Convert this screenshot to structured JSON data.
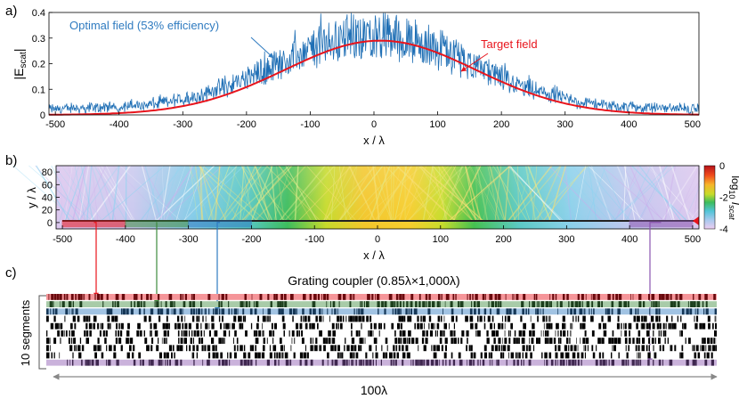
{
  "chart_data": [
    {
      "type": "line",
      "panel_label": "a)",
      "ylabel_main": "|E",
      "ylabel_sub": "scat",
      "ylabel_close": "|",
      "xlabel": "x / λ",
      "xlim": [
        -510,
        510
      ],
      "ylim": [
        0,
        0.4
      ],
      "xticks": [
        "-500",
        "-400",
        "-300",
        "-200",
        "-100",
        "0",
        "100",
        "200",
        "300",
        "400",
        "500"
      ],
      "yticks": [
        "0",
        "0.1",
        "0.2",
        "0.3",
        "0.4"
      ],
      "series": [
        {
          "name": "Optimal field (53% efficiency)",
          "color": "#1f6fb5",
          "kind": "noisy",
          "center": 0,
          "sigma": 150,
          "peak": 0.29,
          "noise_amp": 0.08,
          "floor": 0.025
        },
        {
          "name": "Target field",
          "color": "#e8141c",
          "kind": "gaussian",
          "center": 10,
          "sigma": 150,
          "peak": 0.29
        }
      ],
      "annotations": [
        {
          "text": "Optimal field (53% efficiency)",
          "color": "#2f7bc0"
        },
        {
          "text": "Target field",
          "color": "#e8141c"
        }
      ]
    },
    {
      "type": "heatmap",
      "panel_label": "b)",
      "ylabel": "y / λ",
      "xlabel": "x / λ",
      "xlim": [
        -510,
        510
      ],
      "ylim": [
        -10,
        90
      ],
      "xticks": [
        "-500",
        "-400",
        "-300",
        "-200",
        "-100",
        "0",
        "100",
        "200",
        "300",
        "400",
        "500"
      ],
      "yticks": [
        "0",
        "20",
        "40",
        "60",
        "80"
      ],
      "colorbar": {
        "label_pre": "log",
        "label_sub": "10",
        "label_post": " I",
        "label_sub2": "scat",
        "ticks": [
          "0",
          "-2",
          "-4"
        ],
        "range": [
          -4,
          0
        ]
      },
      "highlight_segments": [
        {
          "name": "seg-red",
          "x_range": [
            -500,
            -400
          ],
          "color": "#e8141c"
        },
        {
          "name": "seg-green",
          "x_range": [
            -400,
            -300
          ],
          "color": "#3d8b3d"
        },
        {
          "name": "seg-blue",
          "x_range": [
            -300,
            -200
          ],
          "color": "#2f7bc0"
        },
        {
          "name": "seg-purple",
          "x_range": [
            400,
            500
          ],
          "color": "#8a55b0"
        }
      ]
    },
    {
      "type": "other",
      "panel_label": "c)",
      "title": "Grating coupler (0.85λ×1,000λ)",
      "ylabel": "10 segments",
      "width_label": "100λ",
      "segments": 10,
      "segment_tints": [
        "#e8141c",
        "#3d8b3d",
        "#2f7bc0",
        "none",
        "none",
        "none",
        "none",
        "none",
        "none",
        "#8a55b0"
      ]
    }
  ]
}
